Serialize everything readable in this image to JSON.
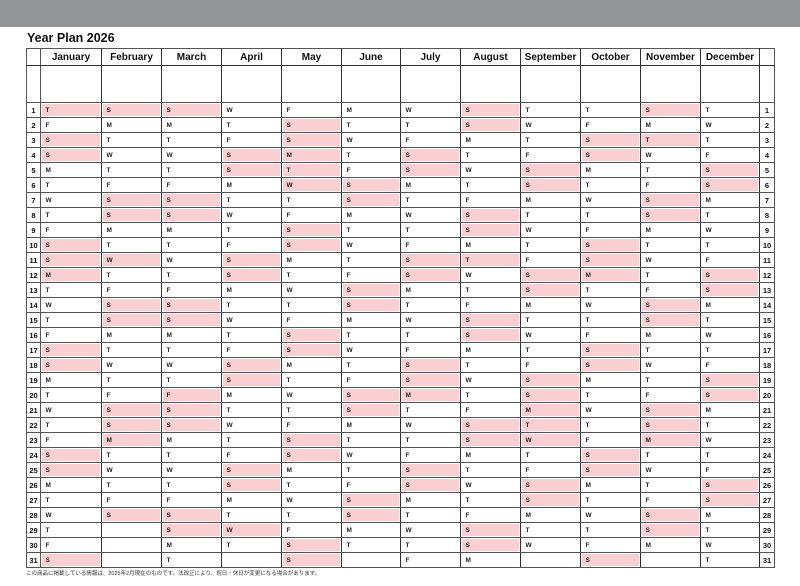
{
  "title": "Year Plan 2026",
  "colors": {
    "shade": "#f9cfd1",
    "holiday_text": "#e07a80",
    "topbar": "#919598"
  },
  "months": [
    {
      "name": "January",
      "days": "TFSSMTWTFSSMTWTFSSMTWTFSSMTWTFS",
      "holidays": [
        1,
        12
      ]
    },
    {
      "name": "February",
      "days": "SMTWTFSSMTWTFSSMTWTFSSMTWTFS",
      "holidays": [
        11,
        23
      ]
    },
    {
      "name": "March",
      "days": "SMTWTFSSMTWTFSSMTWTFSSMTWTFSSMT",
      "holidays": [
        20
      ]
    },
    {
      "name": "April",
      "days": "WTFSSMTWTFSSMTWTFSSMTWTFSSMTWT",
      "holidays": [
        29
      ]
    },
    {
      "name": "May",
      "days": "FSSMTWTFSSMTWTFSSMTWTFSSMTWTFSS",
      "holidays": [
        3,
        4,
        5,
        6
      ]
    },
    {
      "name": "June",
      "days": "MTWTFSSMTWTFSSMTWTFSSMTWTFSSMT",
      "holidays": []
    },
    {
      "name": "July",
      "days": "WTFSSMTWTFSSMTWTFSSMTWTFSSMTWTF",
      "holidays": [
        20
      ]
    },
    {
      "name": "August",
      "days": "SSMTWTFSSMTWTFSSMTWTFSSMTWTFSSM",
      "holidays": [
        11
      ]
    },
    {
      "name": "September",
      "days": "TWTFSSMTWTFSSMTWTFSSMTWTFSSMTW",
      "holidays": [
        21,
        22,
        23
      ]
    },
    {
      "name": "October",
      "days": "TFSSMTWTFSSMTWTFSSMTWTFSSMTWTFS",
      "holidays": [
        12
      ]
    },
    {
      "name": "November",
      "days": "SMTWTFSSMTWTFSSMTWTFSSMTWTFSSM",
      "holidays": [
        3,
        23
      ]
    },
    {
      "name": "December",
      "days": "TWTFSSMTWTFSSMTWTFSSMTWTFSSMTWT",
      "holidays": []
    }
  ],
  "day_numbers": [
    "1",
    "2",
    "3",
    "4",
    "5",
    "6",
    "7",
    "8",
    "9",
    "10",
    "11",
    "12",
    "13",
    "14",
    "15",
    "16",
    "17",
    "18",
    "19",
    "20",
    "21",
    "22",
    "23",
    "24",
    "25",
    "26",
    "27",
    "28",
    "29",
    "30",
    "31"
  ],
  "footnote": "この商品に掲載している情報は、2025年2月現在のものです。法改正により、祝日・休日が変更になる場合があります。"
}
